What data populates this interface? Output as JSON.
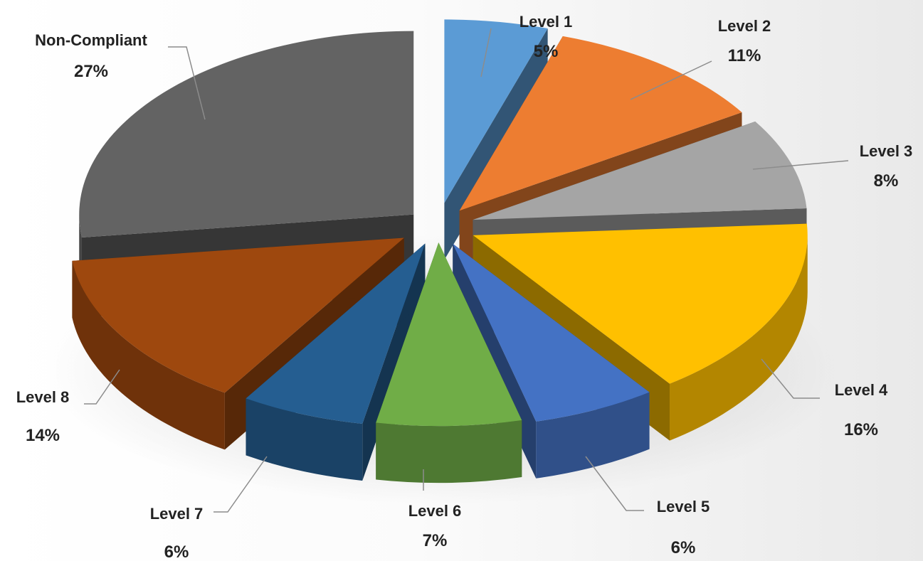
{
  "chart_data": {
    "type": "pie",
    "style": "3d-exploded",
    "slices": [
      {
        "label": "Level 1",
        "value": 5,
        "display": "5%",
        "color": "#5b9bd5"
      },
      {
        "label": "Level 2",
        "value": 11,
        "display": "11%",
        "color": "#ed7d31"
      },
      {
        "label": "Level 3",
        "value": 8,
        "display": "8%",
        "color": "#a5a5a5"
      },
      {
        "label": "Level 4",
        "value": 16,
        "display": "16%",
        "color": "#ffc000"
      },
      {
        "label": "Level 5",
        "value": 6,
        "display": "6%",
        "color": "#4472c4"
      },
      {
        "label": "Level 6",
        "value": 7,
        "display": "7%",
        "color": "#70ad47"
      },
      {
        "label": "Level 7",
        "value": 6,
        "display": "6%",
        "color": "#255e91"
      },
      {
        "label": "Level 8",
        "value": 14,
        "display": "14%",
        "color": "#9e480e"
      },
      {
        "label": "Non-Compliant",
        "value": 27,
        "display": "27%",
        "color": "#636363"
      }
    ],
    "legend": "none",
    "title": ""
  }
}
